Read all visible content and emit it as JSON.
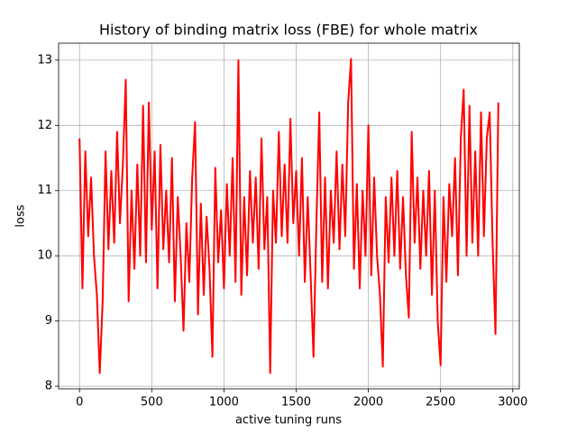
{
  "chart_data": {
    "type": "line",
    "title": "History of binding matrix loss (FBE) for whole matrix",
    "x_label": "active tuning runs",
    "y_label": "loss",
    "color": "#ff0000",
    "grid": true,
    "xlim": [
      -145,
      3045
    ],
    "ylim": [
      7.96,
      13.26
    ],
    "xticks": [
      0,
      500,
      1000,
      1500,
      2000,
      2500,
      3000
    ],
    "yticks": [
      8,
      9,
      10,
      11,
      12,
      13
    ],
    "x": [
      0,
      20,
      40,
      60,
      80,
      100,
      120,
      140,
      160,
      180,
      200,
      220,
      240,
      260,
      280,
      300,
      320,
      340,
      360,
      380,
      400,
      420,
      440,
      460,
      480,
      500,
      520,
      540,
      560,
      580,
      600,
      620,
      640,
      660,
      680,
      700,
      720,
      740,
      760,
      780,
      800,
      820,
      840,
      860,
      880,
      900,
      920,
      940,
      960,
      980,
      1000,
      1020,
      1040,
      1060,
      1080,
      1100,
      1120,
      1140,
      1160,
      1180,
      1200,
      1220,
      1240,
      1260,
      1280,
      1300,
      1320,
      1340,
      1360,
      1380,
      1400,
      1420,
      1440,
      1460,
      1480,
      1500,
      1520,
      1540,
      1560,
      1580,
      1600,
      1620,
      1640,
      1660,
      1680,
      1700,
      1720,
      1740,
      1760,
      1780,
      1800,
      1820,
      1840,
      1860,
      1880,
      1900,
      1920,
      1940,
      1960,
      1980,
      2000,
      2020,
      2040,
      2060,
      2080,
      2100,
      2120,
      2140,
      2160,
      2180,
      2200,
      2220,
      2240,
      2260,
      2280,
      2300,
      2320,
      2340,
      2360,
      2380,
      2400,
      2420,
      2440,
      2460,
      2480,
      2500,
      2520,
      2540,
      2560,
      2580,
      2600,
      2620,
      2640,
      2660,
      2680,
      2700,
      2720,
      2740,
      2760,
      2780,
      2800,
      2820,
      2840,
      2860,
      2880,
      2900
    ],
    "values": [
      11.8,
      9.5,
      11.6,
      10.3,
      11.2,
      10.0,
      9.4,
      8.2,
      9.3,
      11.6,
      10.1,
      11.3,
      10.2,
      11.9,
      10.5,
      11.4,
      12.7,
      9.3,
      11.0,
      9.8,
      11.4,
      10.0,
      12.3,
      9.9,
      12.35,
      10.4,
      11.6,
      9.5,
      11.7,
      10.1,
      11.0,
      9.9,
      11.5,
      9.3,
      10.9,
      10.0,
      8.85,
      10.5,
      9.6,
      11.2,
      12.05,
      9.1,
      10.8,
      9.4,
      10.6,
      9.8,
      8.45,
      11.35,
      9.9,
      10.7,
      9.5,
      11.1,
      10.0,
      11.5,
      9.6,
      13.0,
      9.4,
      10.9,
      9.7,
      11.3,
      10.2,
      11.2,
      9.8,
      11.8,
      10.1,
      10.9,
      8.2,
      11.0,
      10.2,
      11.9,
      10.3,
      11.4,
      10.2,
      12.1,
      10.5,
      11.3,
      10.0,
      11.5,
      9.6,
      10.9,
      9.7,
      8.45,
      10.5,
      12.2,
      9.6,
      11.2,
      9.5,
      11.0,
      10.2,
      11.6,
      10.1,
      11.4,
      10.3,
      12.35,
      13.02,
      9.8,
      11.1,
      9.5,
      11.0,
      10.0,
      12.0,
      9.7,
      11.2,
      10.0,
      9.4,
      8.3,
      10.9,
      9.9,
      11.2,
      10.0,
      11.3,
      9.8,
      10.9,
      9.7,
      9.05,
      11.9,
      10.2,
      11.2,
      9.8,
      11.0,
      10.0,
      11.3,
      9.4,
      11.0,
      9.0,
      8.32,
      10.9,
      9.6,
      11.1,
      10.3,
      11.5,
      9.7,
      11.8,
      12.55,
      10.0,
      12.3,
      10.2,
      11.6,
      10.0,
      12.2,
      10.3,
      11.8,
      12.2,
      10.2,
      8.8,
      12.35
    ]
  }
}
